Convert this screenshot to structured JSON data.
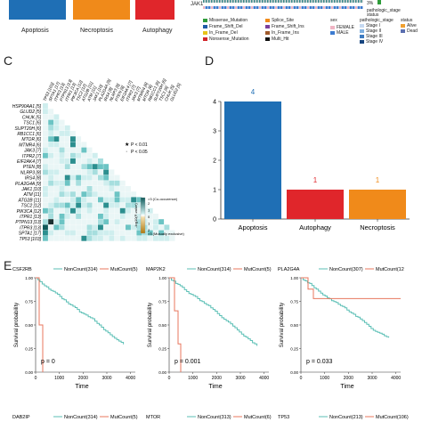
{
  "panelA": {
    "bars": [
      {
        "label": "Apoptosis",
        "color": "#1f6fb5"
      },
      {
        "label": "Necroptosis",
        "color": "#f08a1a"
      },
      {
        "label": "Autophagy",
        "color": "#e0262b"
      }
    ]
  },
  "panelB": {
    "gene": "JAK1",
    "pct": "3%",
    "pathologic_stage_label": "pathologic_stage",
    "status_label": "status",
    "mutation_types": [
      {
        "label": "Missense_Mutation",
        "color": "#2e9c3a"
      },
      {
        "label": "Frame_Shift_Del",
        "color": "#1f5aa6"
      },
      {
        "label": "In_Frame_Del",
        "color": "#e8c31a"
      },
      {
        "label": "Nonsense_Mutation",
        "color": "#d2252a"
      },
      {
        "label": "Splice_Site",
        "color": "#f08a1a"
      },
      {
        "label": "Frame_Shift_Ins",
        "color": "#7b3f9c"
      },
      {
        "label": "In_Frame_Ins",
        "color": "#a05a2c"
      },
      {
        "label": "Multi_Hit",
        "color": "#111111"
      }
    ],
    "sex_title": "sex",
    "sex": [
      {
        "label": "FEMALE",
        "color": "#f0b4c4"
      },
      {
        "label": "MALE",
        "color": "#3c7bd0"
      }
    ],
    "stage_title": "pathologic_stage",
    "stages": [
      {
        "label": "Stage I",
        "color": "#c6d9f1"
      },
      {
        "label": "Stage II",
        "color": "#7fb0e0"
      },
      {
        "label": "Stage III",
        "color": "#3e7bc0"
      },
      {
        "label": "Stage IV",
        "color": "#16457f"
      }
    ],
    "status_title": "status",
    "status": [
      {
        "label": "Alive",
        "color": "#f0a030"
      },
      {
        "label": "Dead",
        "color": "#5b6fb0"
      }
    ]
  },
  "panelC": {
    "letter": "C",
    "genes": [
      "HSP90AA1 [5]",
      "GLUD2 [5]",
      "CHUK [5]",
      "TSC1 [6]",
      "SUPT20H [6]",
      "RB1CC1 [6]",
      "MTOR [6]",
      "MTMR4 [6]",
      "JAK3 [7]",
      "ITPR2 [7]",
      "EIF2AK4 [7]",
      "PTEN [8]",
      "NLRP3 [8]",
      "IRS4 [8]",
      "PLA2G4A [9]",
      "JAK1 [10]",
      "ATM [11]",
      "ATG2B [11]",
      "TSC2 [12]",
      "PIK3CA [12]",
      "ITPR1 [13]",
      "PTPN13 [13]",
      "ITPR3 [13]",
      "SPTA1 [17]",
      "TP53 [103]"
    ],
    "top_genes": [
      "TP53 [103]",
      "SPTA1 [17]",
      "ITPR3 [13]",
      "PTPN13 [13]",
      "ITPR1 [13]",
      "PIK3CA [12]",
      "TSC2 [12]",
      "ATG2B [11]",
      "ATM [11]",
      "JAK1 [10]",
      "PLA2G4A [9]",
      "IRS4 [8]",
      "NLRP3 [8]",
      "PTEN [8]",
      "EIF2AK4 [7]",
      "ITPR2 [7]",
      "JAK3 [7]",
      "MTMR4 [6]",
      "MTOR [6]",
      "RB1CC1 [6]",
      "SUPT20H [6]",
      "TSC1 [6]",
      "CHUK [5]",
      "GLUD2 [5]"
    ],
    "sig1": "P < 0.01",
    "sig2": "P < 0.05",
    "colorbar_title": "-log10(P-value)",
    "cb_top": ">3 (Co-occurence)",
    "cb_bottom": ">3 (Mutually exclusive)",
    "cb_ticks": [
      "2",
      "1",
      "0",
      "1",
      "2"
    ]
  },
  "panelD": {
    "letter": "D",
    "chart_data": {
      "type": "bar",
      "categories": [
        "Apoptosis",
        "Autophagy",
        "Necroptosis"
      ],
      "values": [
        4,
        1,
        1
      ],
      "colors": [
        "#1f6fb5",
        "#e0262b",
        "#f08a1a"
      ],
      "ylim": [
        0,
        4
      ],
      "yticks": [
        "0",
        "1",
        "2",
        "3",
        "4"
      ],
      "data_labels": [
        "4",
        "1",
        "1"
      ]
    }
  },
  "panelE": {
    "letter": "E",
    "ylabel": "Survival probability",
    "xlabel": "Time",
    "xticks": [
      "0",
      "1000",
      "2000",
      "3000",
      "4000"
    ],
    "yticks": [
      "0.00",
      "0.25",
      "0.50",
      "0.75",
      "1.00"
    ],
    "plots": [
      {
        "gene": "CSF2RB",
        "non": "NonCount(314)",
        "mut": "MutCount(5)",
        "p": "p = 0"
      },
      {
        "gene": "MAP2K2",
        "non": "NonCount(314)",
        "mut": "MutCount(5)",
        "p": "p = 0.001"
      },
      {
        "gene": "PLA2G4A",
        "non": "NonCount(307)",
        "mut": "MutCount(12",
        "p": "p = 0.033"
      }
    ],
    "bottom_plots": [
      {
        "gene": "DAB2IP",
        "non": "NonCount(314)",
        "mut": "MutCount(5)"
      },
      {
        "gene": "MTOR",
        "non": "NonCount(313)",
        "mut": "MutCount(6)"
      },
      {
        "gene": "TP53",
        "non": "NonCount(213)",
        "mut": "MutCount(106)"
      }
    ],
    "non_color": "#5bbfb5",
    "mut_color": "#e8775e"
  }
}
